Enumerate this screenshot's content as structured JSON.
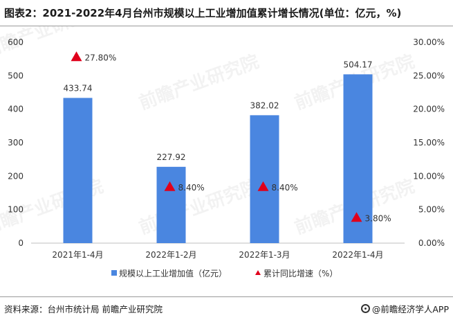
{
  "title": "图表2：2021-2022年4月台州市规模以上工业增加值累计增长情况(单位：亿元，%)",
  "source_text": "资料来源：台州市统计局 前瞻产业研究院",
  "brand_text": "@前瞻经济学人APP",
  "watermark_text": "前瞻产业研究院",
  "colors": {
    "bar": "#4A86E0",
    "marker": "#E0001B",
    "axis": "#bfbfbf"
  },
  "chart_data": {
    "type": "bar",
    "categories": [
      "2021年1-4月",
      "2022年1-2月",
      "2022年1-3月",
      "2022年1-4月"
    ],
    "series": [
      {
        "name": "规模以上工业增加值（亿元）",
        "kind": "bar",
        "axis": "left",
        "values": [
          433.74,
          227.92,
          382.02,
          504.17
        ],
        "labels": [
          "433.74",
          "227.92",
          "382.02",
          "504.17"
        ]
      },
      {
        "name": "累计同比增速（%）",
        "kind": "marker",
        "marker": "triangle",
        "axis": "right",
        "values": [
          27.8,
          8.4,
          8.4,
          3.8
        ],
        "labels": [
          "27.80%",
          "8.40%",
          "8.40%",
          "3.80%"
        ]
      }
    ],
    "y_left": {
      "min": 0,
      "max": 600,
      "ticks": [
        0,
        100,
        200,
        300,
        400,
        500,
        600
      ],
      "tick_labels": [
        "0",
        "100",
        "200",
        "300",
        "400",
        "500",
        "600"
      ]
    },
    "y_right": {
      "min": 0,
      "max": 30,
      "ticks": [
        0,
        5,
        10,
        15,
        20,
        25,
        30
      ],
      "tick_labels": [
        "0.00%",
        "5.00%",
        "10.00%",
        "15.00%",
        "20.00%",
        "25.00%",
        "30.00%"
      ]
    },
    "legend_position": "bottom",
    "grid": false
  }
}
